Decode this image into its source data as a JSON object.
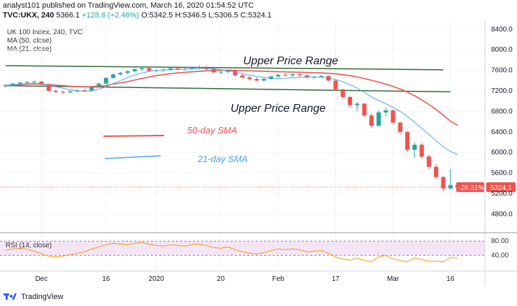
{
  "header": {
    "published": "analyst101 published on TradingView.com, March 16, 2020 01:54:52 UTC",
    "symbol": "TVC:UKX, 240",
    "last": "5366.1",
    "change": "+128.6 (+2.46%)",
    "o": "O:5342.5",
    "h": "H:5346.5",
    "l": "L:5306.5",
    "c": "C:5324.1"
  },
  "legend": {
    "title": "UK 100 Index, 240, TVC",
    "ma50": "MA (50, close)",
    "ma21": "MA (21, close)"
  },
  "annotations": {
    "upper_range_1": "Upper Price Range",
    "upper_range_2": "Upper Price Range",
    "sma50_label": "50-day SMA",
    "sma21_label": "21-day SMA"
  },
  "colors": {
    "candle_up": "#26a69a",
    "candle_down": "#ef5350",
    "ma50": "#ef5350",
    "ma21": "#42a5f5",
    "trendline": "#2e6b32",
    "rsi_line": "#ff9800",
    "rsi_band": "#f3e5f5",
    "price_tag": "#ef5350"
  },
  "rsi": {
    "label": "RSI (14, close)",
    "upper": "80.00",
    "lower": "40.00"
  },
  "price_tags": {
    "change_pct": "-26.31%",
    "last": "5324.1"
  },
  "footer": {
    "brand": "TradingView"
  },
  "chart_data": {
    "type": "candlestick",
    "title": "UK 100 Index, 240, TVC",
    "y_ticks": [
      4800,
      5200,
      5600,
      6000,
      6400,
      6800,
      7200,
      7600,
      8000,
      8400
    ],
    "ylim": [
      4480,
      8560
    ],
    "x_ticks": [
      "Dec",
      "16",
      "2020",
      "20",
      "Feb",
      "17",
      "Mar",
      "16"
    ],
    "x_tick_index": [
      5,
      14,
      21,
      30,
      38,
      46,
      54,
      62
    ],
    "x_count": 64,
    "candles": [
      [
        7290,
        7330,
        7260,
        7310
      ],
      [
        7310,
        7360,
        7290,
        7340
      ],
      [
        7340,
        7380,
        7310,
        7360
      ],
      [
        7360,
        7390,
        7330,
        7370
      ],
      [
        7370,
        7400,
        7340,
        7380
      ],
      [
        7380,
        7390,
        7300,
        7330
      ],
      [
        7330,
        7340,
        7180,
        7200
      ],
      [
        7200,
        7230,
        7150,
        7180
      ],
      [
        7180,
        7210,
        7140,
        7170
      ],
      [
        7170,
        7210,
        7150,
        7190
      ],
      [
        7190,
        7230,
        7170,
        7210
      ],
      [
        7210,
        7240,
        7180,
        7200
      ],
      [
        7200,
        7300,
        7190,
        7280
      ],
      [
        7280,
        7360,
        7270,
        7340
      ],
      [
        7340,
        7460,
        7330,
        7450
      ],
      [
        7450,
        7540,
        7440,
        7520
      ],
      [
        7520,
        7570,
        7500,
        7550
      ],
      [
        7550,
        7600,
        7530,
        7580
      ],
      [
        7580,
        7640,
        7560,
        7620
      ],
      [
        7620,
        7670,
        7590,
        7640
      ],
      [
        7640,
        7660,
        7570,
        7590
      ],
      [
        7590,
        7620,
        7560,
        7600
      ],
      [
        7600,
        7640,
        7570,
        7610
      ],
      [
        7610,
        7660,
        7590,
        7640
      ],
      [
        7640,
        7660,
        7600,
        7620
      ],
      [
        7620,
        7650,
        7590,
        7630
      ],
      [
        7630,
        7680,
        7610,
        7660
      ],
      [
        7660,
        7700,
        7620,
        7650
      ],
      [
        7650,
        7680,
        7600,
        7620
      ],
      [
        7620,
        7640,
        7540,
        7560
      ],
      [
        7560,
        7600,
        7520,
        7570
      ],
      [
        7570,
        7620,
        7540,
        7590
      ],
      [
        7590,
        7610,
        7480,
        7500
      ],
      [
        7500,
        7530,
        7440,
        7460
      ],
      [
        7460,
        7490,
        7400,
        7430
      ],
      [
        7430,
        7460,
        7380,
        7400
      ],
      [
        7400,
        7450,
        7380,
        7430
      ],
      [
        7430,
        7490,
        7420,
        7480
      ],
      [
        7480,
        7530,
        7460,
        7510
      ],
      [
        7510,
        7540,
        7480,
        7500
      ],
      [
        7500,
        7540,
        7470,
        7520
      ],
      [
        7520,
        7550,
        7480,
        7500
      ],
      [
        7500,
        7520,
        7440,
        7460
      ],
      [
        7460,
        7490,
        7430,
        7470
      ],
      [
        7470,
        7510,
        7450,
        7490
      ],
      [
        7490,
        7500,
        7380,
        7400
      ],
      [
        7400,
        7410,
        7200,
        7230
      ],
      [
        7230,
        7240,
        7050,
        7080
      ],
      [
        7080,
        7100,
        6880,
        6920
      ],
      [
        6920,
        6980,
        6800,
        6950
      ],
      [
        6950,
        6960,
        6700,
        6720
      ],
      [
        6720,
        6760,
        6480,
        6520
      ],
      [
        6520,
        6820,
        6500,
        6780
      ],
      [
        6780,
        6880,
        6700,
        6820
      ],
      [
        6820,
        6840,
        6550,
        6580
      ],
      [
        6580,
        6600,
        6350,
        6400
      ],
      [
        6400,
        6420,
        6000,
        6050
      ],
      [
        6050,
        6200,
        5900,
        6150
      ],
      [
        6150,
        6180,
        5880,
        5920
      ],
      [
        5920,
        5960,
        5680,
        5720
      ],
      [
        5720,
        5780,
        5480,
        5520
      ],
      [
        5520,
        5540,
        5250,
        5300
      ],
      [
        5300,
        5680,
        5280,
        5366
      ],
      [
        5366,
        5400,
        5306,
        5324
      ]
    ],
    "ma50": [
      7300,
      7310,
      7320,
      7330,
      7335,
      7330,
      7320,
      7310,
      7300,
      7290,
      7280,
      7275,
      7280,
      7290,
      7305,
      7330,
      7355,
      7380,
      7410,
      7440,
      7470,
      7495,
      7515,
      7535,
      7550,
      7560,
      7570,
      7580,
      7590,
      7595,
      7600,
      7600,
      7598,
      7594,
      7590,
      7585,
      7580,
      7576,
      7572,
      7568,
      7565,
      7562,
      7558,
      7554,
      7550,
      7542,
      7530,
      7515,
      7495,
      7470,
      7440,
      7405,
      7370,
      7330,
      7285,
      7235,
      7175,
      7105,
      7025,
      6935,
      6835,
      6725,
      6610,
      6530
    ],
    "ma21": [
      7310,
      7320,
      7330,
      7340,
      7345,
      7335,
      7310,
      7280,
      7250,
      7220,
      7200,
      7190,
      7200,
      7230,
      7280,
      7340,
      7400,
      7460,
      7510,
      7550,
      7580,
      7595,
      7605,
      7612,
      7618,
      7622,
      7628,
      7635,
      7640,
      7630,
      7610,
      7590,
      7565,
      7535,
      7505,
      7480,
      7460,
      7445,
      7440,
      7445,
      7455,
      7465,
      7470,
      7470,
      7468,
      7450,
      7420,
      7380,
      7320,
      7250,
      7170,
      7080,
      7010,
      6950,
      6880,
      6800,
      6700,
      6590,
      6470,
      6350,
      6230,
      6110,
      6020,
      5960
    ],
    "trendlines": [
      {
        "name": "Upper Price Range",
        "start": [
          0,
          7690
        ],
        "end": [
          61,
          7610
        ]
      },
      {
        "name": "Upper Price Range",
        "start": [
          0,
          7300
        ],
        "end": [
          62,
          7180
        ]
      }
    ],
    "rsi": [
      55,
      58,
      60,
      57,
      52,
      45,
      38,
      36,
      38,
      42,
      46,
      50,
      58,
      64,
      70,
      74,
      72,
      70,
      74,
      76,
      72,
      68,
      66,
      70,
      68,
      66,
      70,
      72,
      68,
      62,
      60,
      64,
      56,
      50,
      46,
      44,
      48,
      54,
      58,
      56,
      58,
      56,
      50,
      52,
      54,
      46,
      36,
      30,
      27,
      32,
      26,
      22,
      36,
      40,
      30,
      26,
      22,
      33,
      28,
      24,
      24,
      22,
      34,
      33
    ],
    "rsi_ylim": [
      0,
      100
    ],
    "rsi_bands": [
      80,
      40
    ],
    "last_price": 5324.1
  }
}
